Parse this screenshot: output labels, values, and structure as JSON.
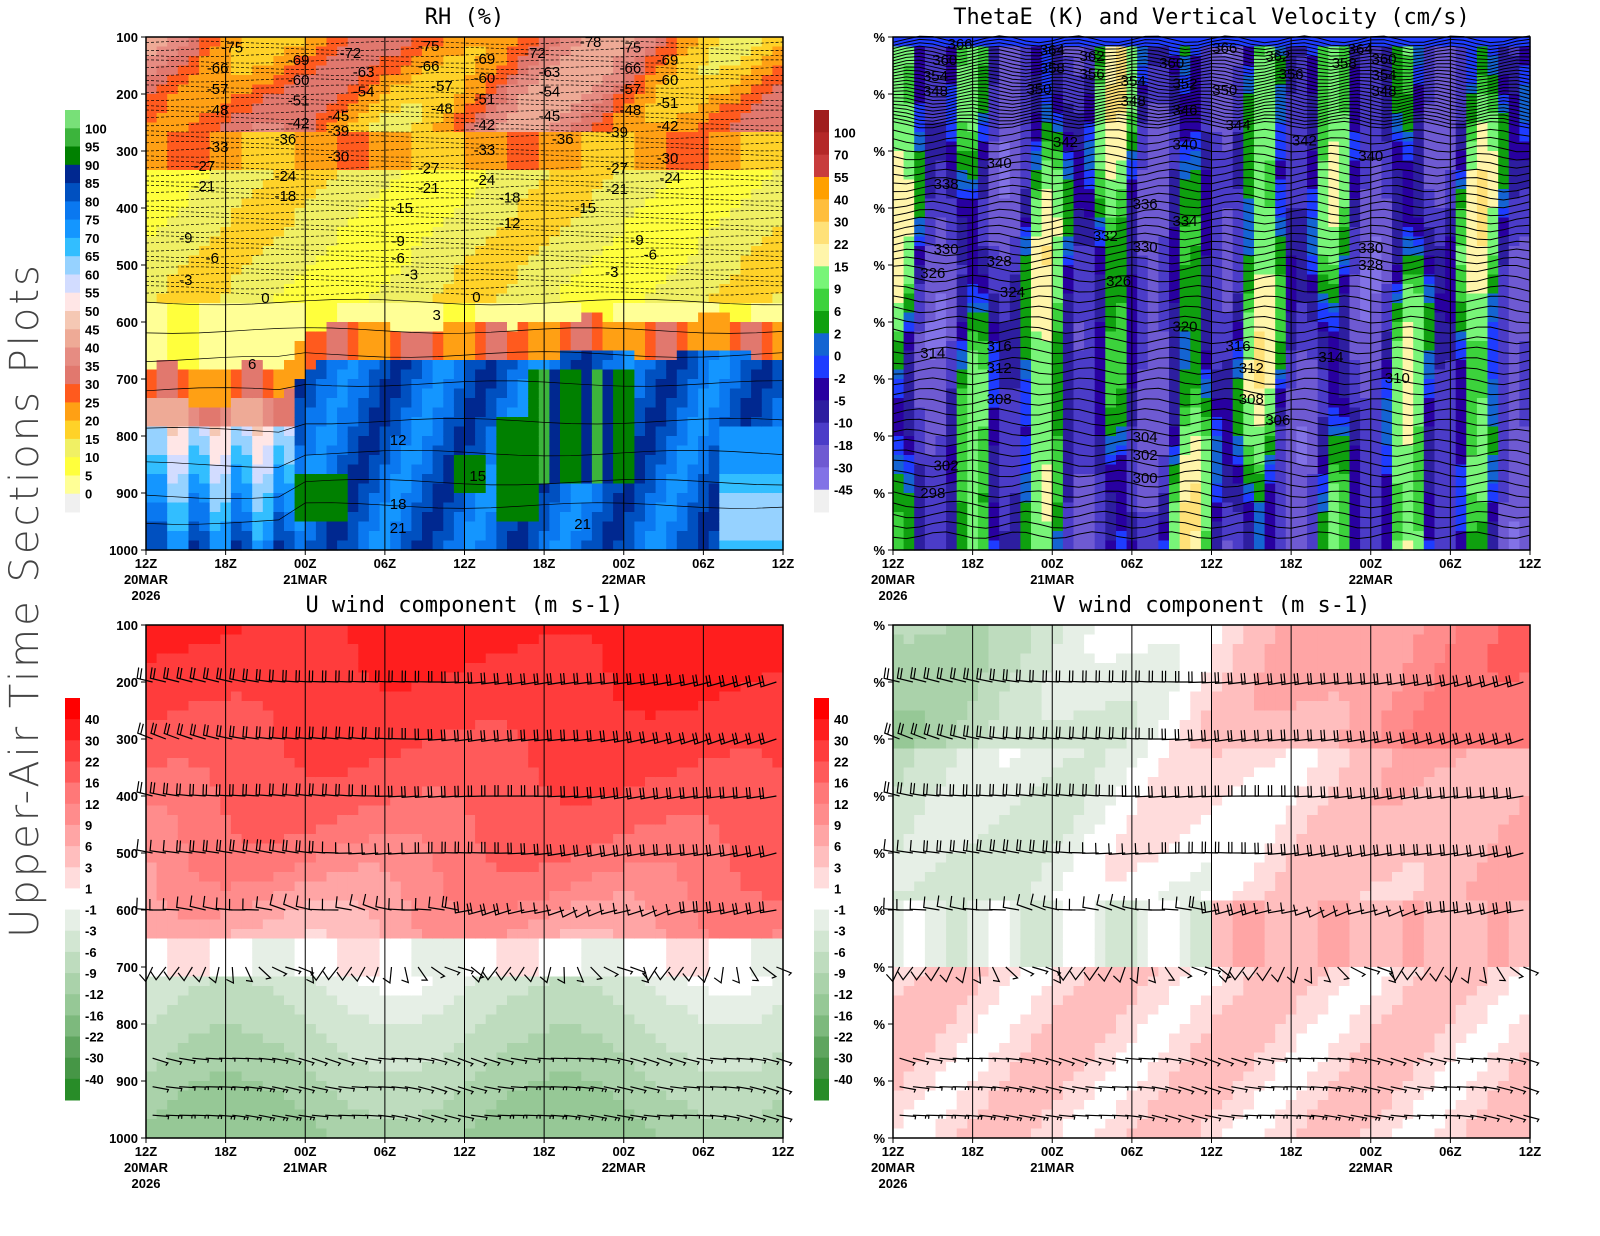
{
  "page_title": "Upper-Air Time Sections Plots",
  "chart_data": [
    {
      "id": "rh",
      "type": "heatmap",
      "title": "RH (%)",
      "x_ticks": [
        "12Z",
        "18Z",
        "00Z",
        "06Z",
        "12Z",
        "18Z",
        "00Z",
        "06Z",
        "12Z"
      ],
      "x_date_labels": {
        "0": [
          "20MAR",
          "2026"
        ],
        "2": [
          "21MAR"
        ],
        "6": [
          "22MAR"
        ]
      },
      "x_range_hours": [
        0,
        48
      ],
      "y_ticks": [
        "100",
        "200",
        "300",
        "400",
        "500",
        "600",
        "700",
        "800",
        "900",
        "1000"
      ],
      "y_range_hPa": [
        100,
        1000
      ],
      "colorbar_labels": [
        "100",
        "95",
        "90",
        "85",
        "80",
        "75",
        "70",
        "65",
        "60",
        "55",
        "50",
        "45",
        "40",
        "35",
        "30",
        "25",
        "20",
        "15",
        "10",
        "5",
        "0"
      ],
      "colorbar_colors": [
        "#78e078",
        "#3cb43c",
        "#008000",
        "#002890",
        "#0050c0",
        "#0a78f0",
        "#1496ff",
        "#32beff",
        "#96d2ff",
        "#d2dcff",
        "#ffe6e6",
        "#f5c8b4",
        "#eeaa96",
        "#e68c82",
        "#e1786e",
        "#ff5a1e",
        "#ffa014",
        "#ffd228",
        "#f0f064",
        "#ffff3c",
        "#ffff96",
        "#f0f0f0"
      ],
      "contour_labels": [
        [
          6.5,
          118,
          "-75"
        ],
        [
          5.4,
          154,
          "-66"
        ],
        [
          5.4,
          191,
          "-57"
        ],
        [
          5.4,
          228,
          "-48"
        ],
        [
          5.4,
          293,
          "-33"
        ],
        [
          4.4,
          326,
          "-27"
        ],
        [
          4.4,
          361,
          "-21"
        ],
        [
          3.0,
          453,
          "-9"
        ],
        [
          5.0,
          488,
          "-6"
        ],
        [
          3.0,
          526,
          "-3"
        ],
        [
          9.0,
          558,
          "0"
        ],
        [
          8.0,
          674,
          "6"
        ],
        [
          11.5,
          140,
          "-69"
        ],
        [
          11.5,
          175,
          "-60"
        ],
        [
          11.5,
          211,
          "-51"
        ],
        [
          11.5,
          251,
          "-42"
        ],
        [
          10.5,
          279,
          "-36"
        ],
        [
          15.4,
          128,
          "-72"
        ],
        [
          16.4,
          161,
          "-63"
        ],
        [
          16.4,
          196,
          "-54"
        ],
        [
          14.5,
          239,
          "-45"
        ],
        [
          14.5,
          265,
          "-39"
        ],
        [
          14.5,
          310,
          "-30"
        ],
        [
          10.5,
          344,
          "-24"
        ],
        [
          10.5,
          379,
          "-18"
        ],
        [
          21.3,
          116,
          "-75"
        ],
        [
          21.3,
          151,
          "-66"
        ],
        [
          22.3,
          186,
          "-57"
        ],
        [
          22.3,
          225,
          "-48"
        ],
        [
          21.3,
          330,
          "-27"
        ],
        [
          21.3,
          365,
          "-21"
        ],
        [
          19.3,
          400,
          "-15"
        ],
        [
          19,
          458,
          "-9"
        ],
        [
          19,
          488,
          "-6"
        ],
        [
          20,
          517,
          "-3"
        ],
        [
          24.9,
          556,
          "0"
        ],
        [
          21.9,
          588,
          "3"
        ],
        [
          25.5,
          139,
          "-69"
        ],
        [
          25.5,
          172,
          "-60"
        ],
        [
          25.5,
          209,
          "-51"
        ],
        [
          25.5,
          254,
          "-42"
        ],
        [
          25.5,
          298,
          "-33"
        ],
        [
          25.5,
          351,
          "-24"
        ],
        [
          27.4,
          382,
          "-18"
        ],
        [
          27.4,
          426,
          "-12"
        ],
        [
          29.3,
          128,
          "-72"
        ],
        [
          30.4,
          161,
          "-63"
        ],
        [
          30.4,
          196,
          "-54"
        ],
        [
          30.4,
          239,
          "-45"
        ],
        [
          31.4,
          279,
          "-36"
        ],
        [
          33.1,
          400,
          "-15"
        ],
        [
          33.5,
          109,
          "-78"
        ],
        [
          36.5,
          118,
          "-75"
        ],
        [
          36.5,
          154,
          "-66"
        ],
        [
          36.5,
          191,
          "-57"
        ],
        [
          36.5,
          228,
          "-48"
        ],
        [
          35.5,
          267,
          "-39"
        ],
        [
          35.5,
          330,
          "-27"
        ],
        [
          35.5,
          367,
          "-21"
        ],
        [
          37,
          456,
          "-9"
        ],
        [
          38,
          482,
          "-6"
        ],
        [
          35.1,
          512,
          "-3"
        ],
        [
          39.3,
          140,
          "-69"
        ],
        [
          39.3,
          175,
          "-60"
        ],
        [
          39.3,
          216,
          "-51"
        ],
        [
          39.3,
          256,
          "-42"
        ],
        [
          39.3,
          312,
          "-30"
        ],
        [
          39.5,
          347,
          "-24"
        ],
        [
          19,
          807,
          "12"
        ],
        [
          25,
          870,
          "15"
        ],
        [
          19,
          919,
          "18"
        ],
        [
          19,
          961,
          "21"
        ],
        [
          32.9,
          954,
          "21"
        ]
      ]
    },
    {
      "id": "thetae",
      "type": "heatmap",
      "title": "ThetaE (K) and Vertical Velocity (cm/s)",
      "x_ticks": [
        "12Z",
        "18Z",
        "00Z",
        "06Z",
        "12Z",
        "18Z",
        "00Z",
        "06Z",
        "12Z"
      ],
      "x_date_labels": {
        "0": [
          "20MAR",
          "2026"
        ],
        "2": [
          "21MAR"
        ],
        "6": [
          "22MAR"
        ]
      },
      "x_range_hours": [
        0,
        48
      ],
      "y_ticks": [
        "%",
        "%",
        "%",
        "%",
        "%",
        "%",
        "%",
        "%",
        "%",
        "%"
      ],
      "y_range_hPa": [
        100,
        1000
      ],
      "colorbar_labels": [
        "100",
        "70",
        "55",
        "40",
        "30",
        "22",
        "15",
        "9",
        "6",
        "2",
        "0",
        "-2",
        "-5",
        "-10",
        "-18",
        "-30",
        "-45"
      ],
      "colorbar_colors": [
        "#a01e1e",
        "#b42828",
        "#c83c3c",
        "#ffa000",
        "#ffbe3c",
        "#ffe178",
        "#fff5aa",
        "#78f578",
        "#3cd23c",
        "#0fa00f",
        "#1464d2",
        "#1e3cff",
        "#2800a0",
        "#2d1ea0",
        "#4b3cc8",
        "#6e5ad2",
        "#8272e6",
        "#f0f0f0"
      ],
      "contour_labels": [
        [
          5.05,
          112,
          "366"
        ],
        [
          3.9,
          140,
          "360"
        ],
        [
          12,
          123,
          "364"
        ],
        [
          12,
          154,
          "358"
        ],
        [
          15,
          133,
          "362"
        ],
        [
          15,
          165,
          "356"
        ],
        [
          18.1,
          177,
          "354"
        ],
        [
          18.1,
          212,
          "348"
        ],
        [
          21,
          146,
          "360"
        ],
        [
          22,
          182,
          "352"
        ],
        [
          22,
          228,
          "346"
        ],
        [
          25,
          193,
          "350"
        ],
        [
          26,
          254,
          "344"
        ],
        [
          25,
          119,
          "366"
        ],
        [
          29,
          133,
          "362"
        ],
        [
          30,
          165,
          "356"
        ],
        [
          31,
          282,
          "342"
        ],
        [
          35.2,
          121,
          "364"
        ],
        [
          34,
          146,
          "358"
        ],
        [
          37,
          139,
          "360"
        ],
        [
          37,
          167,
          "354"
        ],
        [
          37,
          195,
          "348"
        ],
        [
          3.2,
          168,
          "354"
        ],
        [
          3.2,
          195,
          "348"
        ],
        [
          11,
          191,
          "350"
        ],
        [
          13,
          284,
          "342"
        ],
        [
          8,
          321,
          "340"
        ],
        [
          22,
          289,
          "340"
        ],
        [
          36,
          309,
          "340"
        ],
        [
          4,
          358,
          "338"
        ],
        [
          19,
          393,
          "336"
        ],
        [
          22,
          423,
          "334"
        ],
        [
          16,
          449,
          "332"
        ],
        [
          19,
          468,
          "330"
        ],
        [
          4,
          472,
          "330"
        ],
        [
          8,
          493,
          "328"
        ],
        [
          3,
          514,
          "326"
        ],
        [
          9,
          547,
          "324"
        ],
        [
          17,
          528,
          "326"
        ],
        [
          22,
          608,
          "320"
        ],
        [
          36,
          470,
          "330"
        ],
        [
          36,
          500,
          "328"
        ],
        [
          3,
          654,
          "314"
        ],
        [
          8,
          642,
          "316"
        ],
        [
          8,
          681,
          "312"
        ],
        [
          26,
          642,
          "316"
        ],
        [
          27,
          681,
          "312"
        ],
        [
          33,
          661,
          "314"
        ],
        [
          38,
          698,
          "310"
        ],
        [
          8,
          735,
          "308"
        ],
        [
          27,
          735,
          "308"
        ],
        [
          29,
          772,
          "306"
        ],
        [
          19,
          802,
          "304"
        ],
        [
          19,
          833,
          "302"
        ],
        [
          19,
          874,
          "300"
        ],
        [
          4,
          852,
          "302"
        ],
        [
          3,
          900,
          "298"
        ]
      ]
    },
    {
      "id": "u",
      "type": "heatmap",
      "title": "U wind component (m s-1)",
      "x_ticks": [
        "12Z",
        "18Z",
        "00Z",
        "06Z",
        "12Z",
        "18Z",
        "00Z",
        "06Z",
        "12Z"
      ],
      "x_date_labels": {
        "0": [
          "20MAR",
          "2026"
        ],
        "2": [
          "21MAR"
        ],
        "6": [
          "22MAR"
        ]
      },
      "x_range_hours": [
        0,
        48
      ],
      "y_ticks": [
        "100",
        "200",
        "300",
        "400",
        "500",
        "600",
        "700",
        "800",
        "900",
        "1000"
      ],
      "y_range_hPa": [
        100,
        1000
      ],
      "colorbar_labels": [
        "40",
        "30",
        "22",
        "16",
        "12",
        "9",
        "6",
        "3",
        "1",
        "-1",
        "-3",
        "-6",
        "-9",
        "-12",
        "-16",
        "-22",
        "-30",
        "-40"
      ],
      "colorbar_colors": [
        "#ff0000",
        "#ff1e1e",
        "#ff3c3c",
        "#ff5a5a",
        "#ff7878",
        "#ff8c8c",
        "#ffa5a5",
        "#ffbebe",
        "#ffdcdc",
        "#ffffff",
        "#e6efe6",
        "#d2e6d2",
        "#bedcbe",
        "#aad2aa",
        "#96c896",
        "#7db97d",
        "#5fa55f",
        "#469646",
        "#288c28"
      ],
      "barb_levels_hPa": [
        200,
        300,
        400,
        500,
        600,
        700,
        860,
        910,
        960
      ]
    },
    {
      "id": "v",
      "type": "heatmap",
      "title": "V wind component (m s-1)",
      "x_ticks": [
        "12Z",
        "18Z",
        "00Z",
        "06Z",
        "12Z",
        "18Z",
        "00Z",
        "06Z",
        "12Z"
      ],
      "x_date_labels": {
        "0": [
          "20MAR",
          "2026"
        ],
        "2": [
          "21MAR"
        ],
        "6": [
          "22MAR"
        ]
      },
      "x_range_hours": [
        0,
        48
      ],
      "y_ticks": [
        "%",
        "%",
        "%",
        "%",
        "%",
        "%",
        "%",
        "%",
        "%",
        "%"
      ],
      "y_range_hPa": [
        100,
        1000
      ],
      "colorbar_labels": [
        "40",
        "30",
        "22",
        "16",
        "12",
        "9",
        "6",
        "3",
        "1",
        "-1",
        "-3",
        "-6",
        "-9",
        "-12",
        "-16",
        "-22",
        "-30",
        "-40"
      ],
      "colorbar_colors": [
        "#ff0000",
        "#ff1e1e",
        "#ff3c3c",
        "#ff5a5a",
        "#ff7878",
        "#ff8c8c",
        "#ffa5a5",
        "#ffbebe",
        "#ffdcdc",
        "#ffffff",
        "#e6efe6",
        "#d2e6d2",
        "#bedcbe",
        "#aad2aa",
        "#96c896",
        "#7db97d",
        "#5fa55f",
        "#469646",
        "#288c28"
      ],
      "barb_levels_hPa": [
        200,
        300,
        400,
        500,
        600,
        700,
        860,
        910,
        960
      ]
    }
  ]
}
